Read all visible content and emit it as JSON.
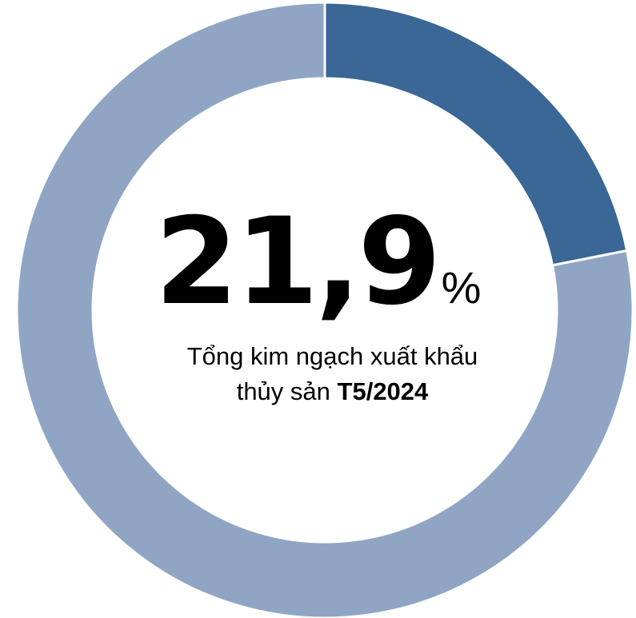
{
  "chart_data": {
    "type": "pie",
    "style": "donut",
    "categories": [
      "",
      ""
    ],
    "values": [
      21.9,
      78.1
    ],
    "unit": "%",
    "colors": [
      "#3a6795",
      "#90a5c4"
    ],
    "start_angle": "12 o'clock",
    "direction": "clockwise",
    "legend": "none",
    "center_label": {
      "value": "21,9",
      "unit": "%",
      "line1": "Tổng kim ngạch xuất khẩu",
      "line2_prefix": "thủy sản",
      "line2_bold": "T5/2024"
    }
  }
}
